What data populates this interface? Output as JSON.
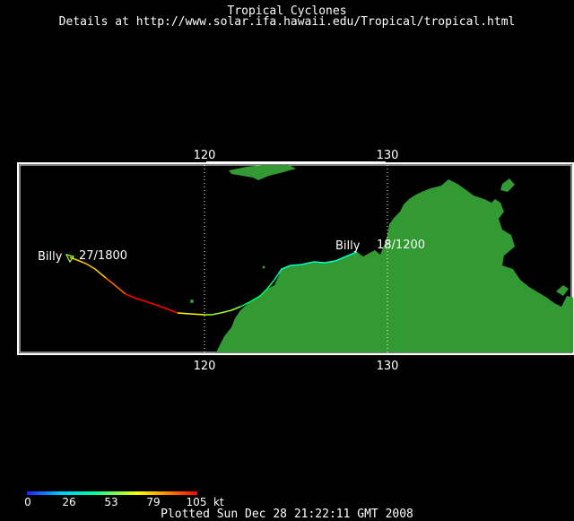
{
  "header": {
    "title": "Tropical Cyclones",
    "subtitle": "Details at http://www.solar.ifa.hawaii.edu/Tropical/tropical.html"
  },
  "map": {
    "longitude_ticks": [
      "120",
      "130"
    ],
    "land_color": "#339933",
    "frame_color": "#ffffff"
  },
  "storm": {
    "name_start": "Billy",
    "label_start": "27/1800",
    "name_end": "Billy",
    "label_end": "18/1200"
  },
  "legend": {
    "ticks": [
      "0",
      "26",
      "53",
      "79",
      "105"
    ],
    "unit": "kt",
    "colors": [
      "#2020ff",
      "#00ccff",
      "#00ff99",
      "#ffff00",
      "#ff8800",
      "#ff0000"
    ]
  },
  "footer": {
    "plotted": "Plotted Sun Dec 28 21:22:11 GMT 2008"
  }
}
